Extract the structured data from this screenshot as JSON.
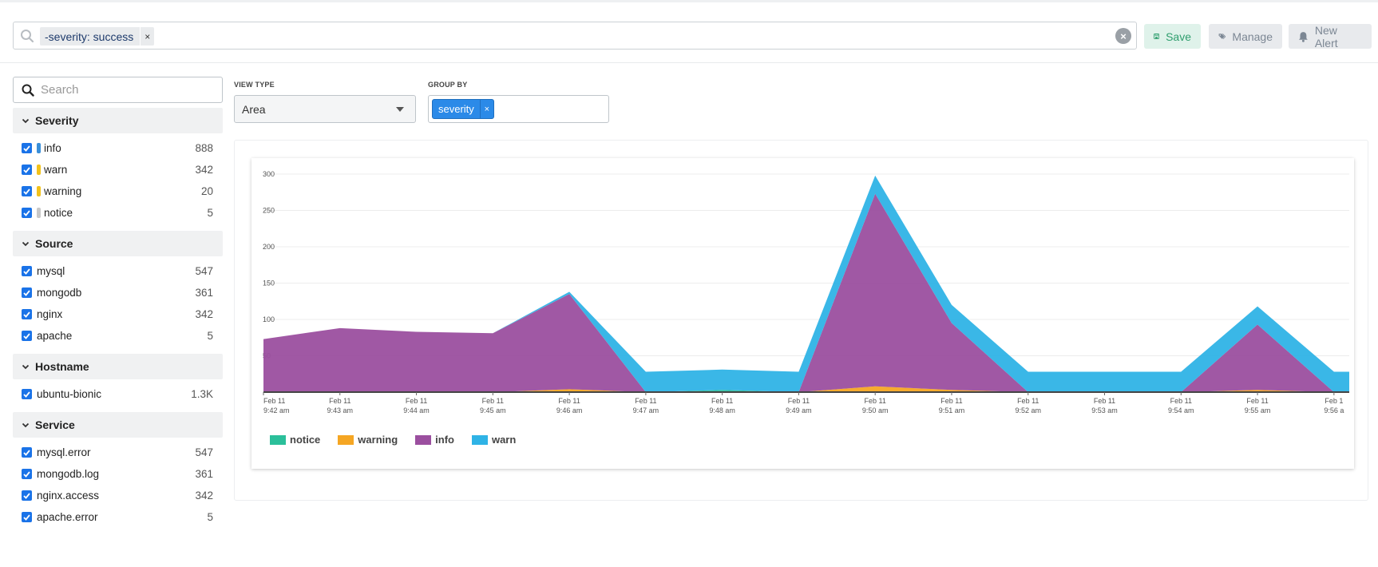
{
  "search": {
    "chip_label": "-severity: success",
    "chip_remove": "×",
    "clear": "×"
  },
  "toolbar": {
    "save_label": "Save",
    "manage_label": "Manage",
    "new_alert_label": "New Alert"
  },
  "sidebar": {
    "search_placeholder": "Search",
    "groups": [
      {
        "title": "Severity",
        "items": [
          {
            "label": "info",
            "count": "888",
            "color": "#3a8fd9"
          },
          {
            "label": "warn",
            "count": "342",
            "color": "#f2c21b"
          },
          {
            "label": "warning",
            "count": "20",
            "color": "#f2c21b"
          },
          {
            "label": "notice",
            "count": "5",
            "color": "#c8c8c8"
          }
        ]
      },
      {
        "title": "Source",
        "items": [
          {
            "label": "mysql",
            "count": "547"
          },
          {
            "label": "mongodb",
            "count": "361"
          },
          {
            "label": "nginx",
            "count": "342"
          },
          {
            "label": "apache",
            "count": "5"
          }
        ]
      },
      {
        "title": "Hostname",
        "items": [
          {
            "label": "ubuntu-bionic",
            "count": "1.3K"
          }
        ]
      },
      {
        "title": "Service",
        "items": [
          {
            "label": "mysql.error",
            "count": "547"
          },
          {
            "label": "mongodb.log",
            "count": "361"
          },
          {
            "label": "nginx.access",
            "count": "342"
          },
          {
            "label": "apache.error",
            "count": "5"
          }
        ]
      }
    ]
  },
  "controls": {
    "view_type_label": "VIEW TYPE",
    "view_type_value": "Area",
    "group_by_label": "GROUP BY",
    "group_by_chip": "severity",
    "group_by_remove": "×"
  },
  "chart_data": {
    "type": "area",
    "stacked": true,
    "categories": [
      [
        "Feb 11",
        "9:42 am"
      ],
      [
        "Feb 11",
        "9:43 am"
      ],
      [
        "Feb 11",
        "9:44 am"
      ],
      [
        "Feb 11",
        "9:45 am"
      ],
      [
        "Feb 11",
        "9:46 am"
      ],
      [
        "Feb 11",
        "9:47 am"
      ],
      [
        "Feb 11",
        "9:48 am"
      ],
      [
        "Feb 11",
        "9:49 am"
      ],
      [
        "Feb 11",
        "9:50 am"
      ],
      [
        "Feb 11",
        "9:51 am"
      ],
      [
        "Feb 11",
        "9:52 am"
      ],
      [
        "Feb 11",
        "9:53 am"
      ],
      [
        "Feb 11",
        "9:54 am"
      ],
      [
        "Feb 11",
        "9:55 am"
      ],
      [
        "Feb 1",
        "9:56 a"
      ]
    ],
    "series": [
      {
        "name": "notice",
        "color": "#2bbf9a",
        "values": [
          0,
          0,
          0,
          0,
          0,
          0,
          3,
          0,
          0,
          0,
          0,
          0,
          0,
          0,
          0
        ]
      },
      {
        "name": "warning",
        "color": "#f5a623",
        "values": [
          0,
          0,
          0,
          0,
          4,
          0,
          0,
          0,
          8,
          3,
          0,
          0,
          0,
          3,
          0
        ]
      },
      {
        "name": "info",
        "color": "#9b4f9f",
        "values": [
          73,
          88,
          83,
          81,
          131,
          0,
          0,
          0,
          265,
          92,
          0,
          0,
          0,
          90,
          0
        ]
      },
      {
        "name": "warn",
        "color": "#2fb3e6",
        "values": [
          0,
          0,
          0,
          0,
          3,
          28,
          28,
          28,
          25,
          25,
          28,
          28,
          28,
          25,
          28
        ]
      }
    ],
    "ylim": [
      0,
      300
    ],
    "yticks": [
      50,
      100,
      150,
      200,
      250,
      300
    ],
    "legend": "bottom-left",
    "grid": true,
    "xlabel": "",
    "ylabel": ""
  }
}
